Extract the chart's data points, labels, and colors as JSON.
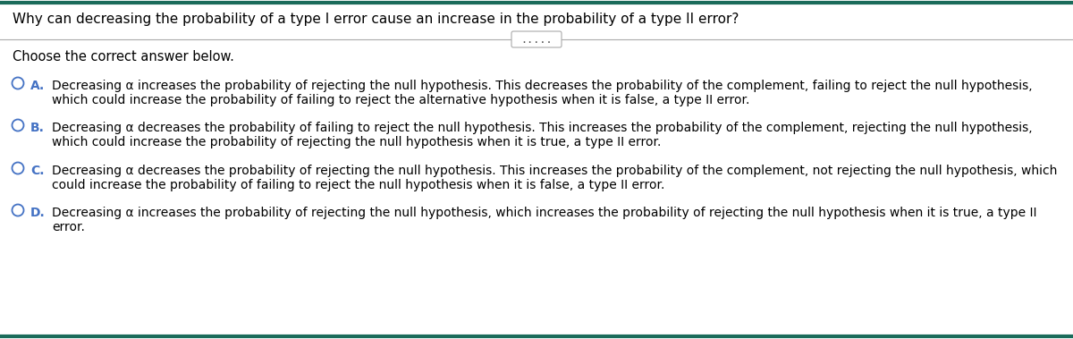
{
  "title": "Why can decreasing the probability of a type I error cause an increase in the probability of a type II error?",
  "subtitle": "Choose the correct answer below.",
  "options": [
    {
      "letter": "A.",
      "line1": "Decreasing α increases the probability of rejecting the null hypothesis. This decreases the probability of the complement, failing to reject the null hypothesis,",
      "line2": "which could increase the probability of failing to reject the alternative hypothesis when it is false, a type II error."
    },
    {
      "letter": "B.",
      "line1": "Decreasing α decreases the probability of failing to reject the null hypothesis. This increases the probability of the complement, rejecting the null hypothesis,",
      "line2": "which could increase the probability of rejecting the null hypothesis when it is true, a type II error."
    },
    {
      "letter": "C.",
      "line1": "Decreasing α decreases the probability of rejecting the null hypothesis. This increases the probability of the complement, not rejecting the null hypothesis, which",
      "line2": "could increase the probability of failing to reject the null hypothesis when it is false, a type II error."
    },
    {
      "letter": "D.",
      "line1": "Decreasing α increases the probability of rejecting the null hypothesis, which increases the probability of rejecting the null hypothesis when it is true, a type II",
      "line2": "error."
    }
  ],
  "bg_color": "#ffffff",
  "title_color": "#000000",
  "subtitle_color": "#000000",
  "option_letter_color": "#4472c4",
  "option_text_color": "#000000",
  "top_border_color": "#1a6b5a",
  "bottom_border_color": "#1a6b5a",
  "sep_line_color": "#aaaaaa",
  "circle_color": "#4472c4",
  "dots_text": ".....",
  "dots_color": "#555555",
  "title_fontsize": 11.0,
  "subtitle_fontsize": 10.5,
  "option_fontsize": 10.0,
  "dots_fontsize": 8.5
}
